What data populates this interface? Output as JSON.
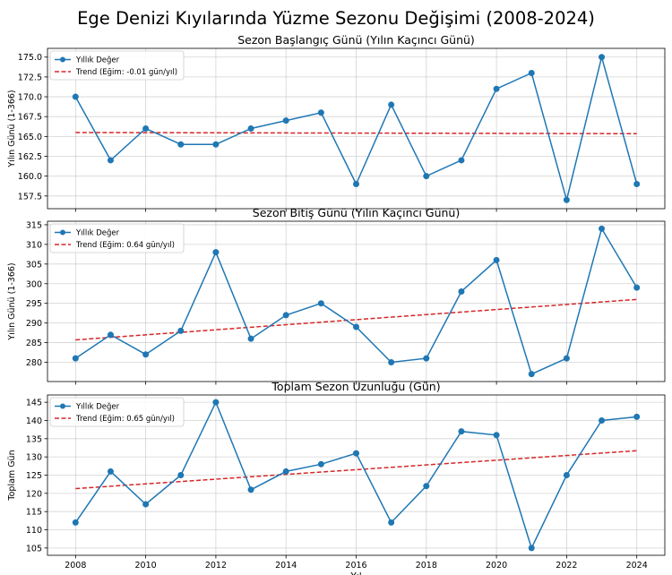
{
  "figure": {
    "title": "Ege Denizi Kıyılarında Yüzme Sezonu Değişimi (2008-2024)"
  },
  "colors": {
    "series": "#1f77b4",
    "trend": "#d62728",
    "grid": "#b0b0b0",
    "axes": "#000000"
  },
  "chart_data": [
    {
      "type": "line",
      "title": "Sezon Başlangıç Günü (Yılın Kaçıncı Günü)",
      "xlabel": "",
      "ylabel": "Yılın Günü (1-366)",
      "x": [
        2008,
        2009,
        2010,
        2011,
        2012,
        2013,
        2014,
        2015,
        2016,
        2017,
        2018,
        2019,
        2020,
        2021,
        2022,
        2023,
        2024
      ],
      "xlim": [
        2007.2,
        2024.8
      ],
      "ylim": [
        155.9,
        176.1
      ],
      "yticks": [
        157.5,
        160.0,
        162.5,
        165.0,
        167.5,
        170.0,
        172.5,
        175.0
      ],
      "ytick_labels": [
        "157.5",
        "160.0",
        "162.5",
        "165.0",
        "167.5",
        "170.0",
        "172.5",
        "175.0"
      ],
      "series": [
        {
          "name": "Yıllık Değer",
          "values": [
            170,
            162,
            166,
            164,
            164,
            166,
            167,
            168,
            159,
            169,
            160,
            162,
            171,
            173,
            157,
            175,
            159
          ]
        }
      ],
      "trend": {
        "name": "Trend (Eğim: -0.01 gün/yıl)",
        "start": 165.5,
        "end": 165.35
      },
      "legend": "top-left",
      "grid": true
    },
    {
      "type": "line",
      "title": "Sezon Bitiş Günü (Yılın Kaçıncı Günü)",
      "xlabel": "",
      "ylabel": "Yılın Günü (1-366)",
      "x": [
        2008,
        2009,
        2010,
        2011,
        2012,
        2013,
        2014,
        2015,
        2016,
        2017,
        2018,
        2019,
        2020,
        2021,
        2022,
        2023,
        2024
      ],
      "xlim": [
        2007.2,
        2024.8
      ],
      "ylim": [
        275.1,
        315.9
      ],
      "yticks": [
        280,
        285,
        290,
        295,
        300,
        305,
        310,
        315
      ],
      "ytick_labels": [
        "280",
        "285",
        "290",
        "295",
        "300",
        "305",
        "310",
        "315"
      ],
      "series": [
        {
          "name": "Yıllık Değer",
          "values": [
            281,
            287,
            282,
            288,
            308,
            286,
            292,
            295,
            289,
            280,
            281,
            298,
            306,
            277,
            281,
            314,
            299
          ]
        }
      ],
      "trend": {
        "name": "Trend (Eğim: 0.64 gün/yıl)",
        "start": 285.7,
        "end": 296.0
      },
      "legend": "top-left",
      "grid": true
    },
    {
      "type": "line",
      "title": "Toplam Sezon Uzunluğu (Gün)",
      "xlabel": "Yıl",
      "ylabel": "Toplam Gün",
      "x": [
        2008,
        2009,
        2010,
        2011,
        2012,
        2013,
        2014,
        2015,
        2016,
        2017,
        2018,
        2019,
        2020,
        2021,
        2022,
        2023,
        2024
      ],
      "xlim": [
        2007.2,
        2024.8
      ],
      "ylim": [
        103.0,
        147.0
      ],
      "yticks": [
        105,
        110,
        115,
        120,
        125,
        130,
        135,
        140,
        145
      ],
      "ytick_labels": [
        "105",
        "110",
        "115",
        "120",
        "125",
        "130",
        "135",
        "140",
        "145"
      ],
      "xticks": [
        2008,
        2010,
        2012,
        2014,
        2016,
        2018,
        2020,
        2022,
        2024
      ],
      "xtick_labels": [
        "2008",
        "2010",
        "2012",
        "2014",
        "2016",
        "2018",
        "2020",
        "2022",
        "2024"
      ],
      "series": [
        {
          "name": "Yıllık Değer",
          "values": [
            112,
            126,
            117,
            125,
            145,
            121,
            126,
            128,
            131,
            112,
            122,
            137,
            136,
            105,
            125,
            140,
            141
          ]
        }
      ],
      "trend": {
        "name": "Trend (Eğim: 0.65 gün/yıl)",
        "start": 121.3,
        "end": 131.7
      },
      "legend": "top-left",
      "grid": true
    }
  ]
}
